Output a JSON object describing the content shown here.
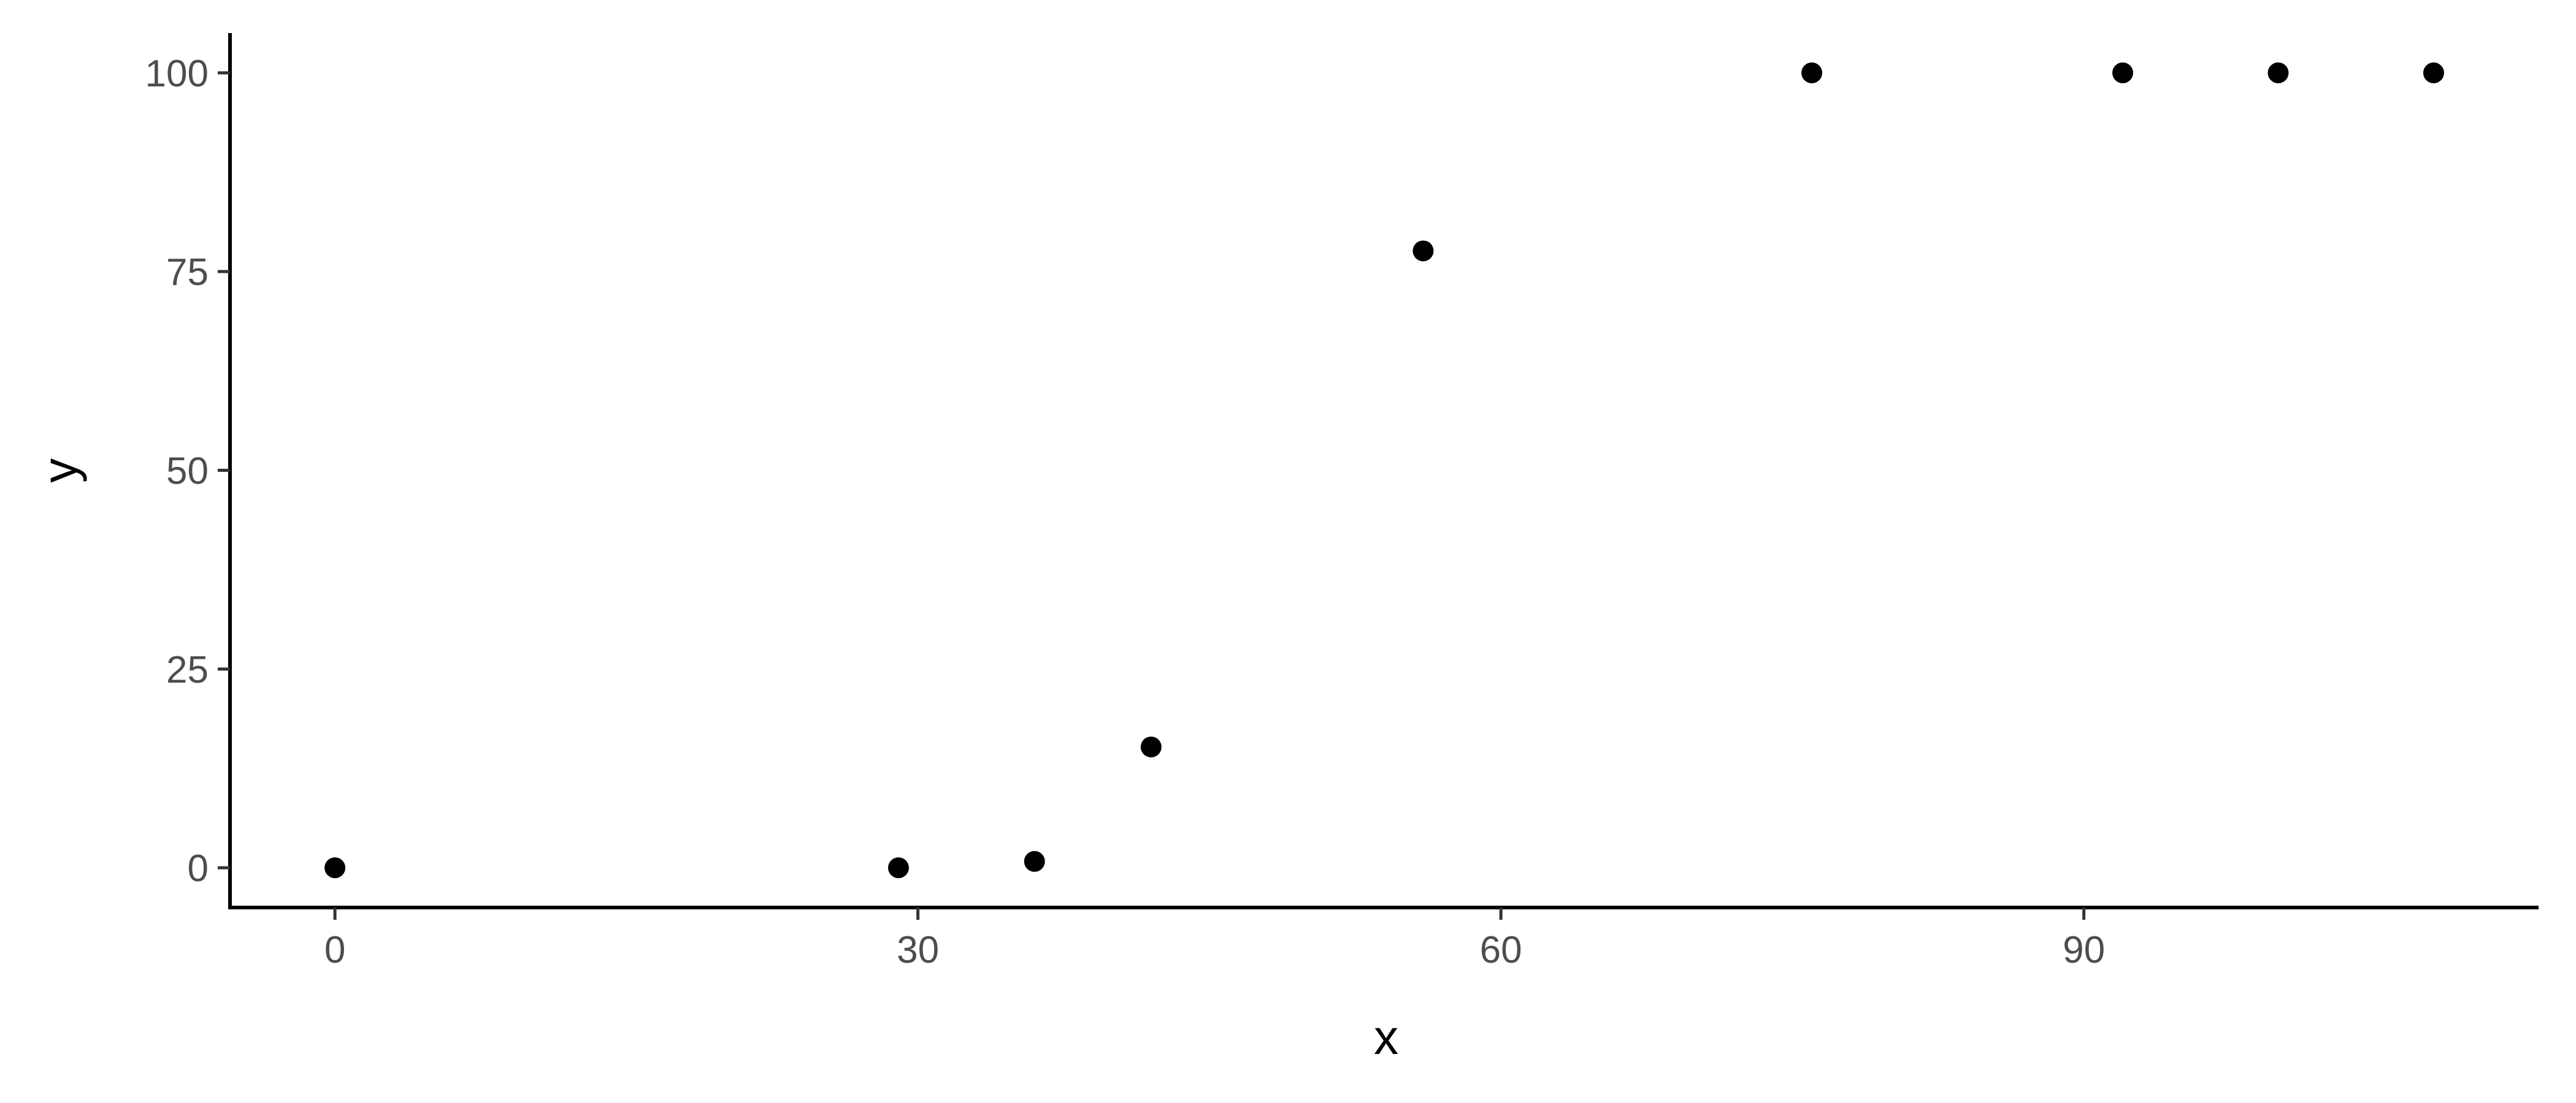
{
  "chart_data": {
    "type": "scatter",
    "title": "",
    "xlabel": "x",
    "ylabel": "y",
    "x": [
      0,
      29,
      36,
      42,
      56,
      76,
      92,
      100,
      108
    ],
    "y": [
      0,
      0,
      0.8,
      15.2,
      77.6,
      100,
      100,
      100,
      100
    ],
    "xlim": [
      -5.4,
      113.4
    ],
    "ylim": [
      -5,
      105
    ],
    "xticks": [
      0,
      30,
      60,
      90
    ],
    "yticks": [
      0,
      25,
      50,
      75,
      100
    ],
    "xtick_labels": [
      "0",
      "30",
      "60",
      "90"
    ],
    "ytick_labels": [
      "0",
      "25",
      "50",
      "75",
      "100"
    ],
    "grid": false,
    "point_color": "#000000",
    "axis_color": "#000000",
    "tick_label_color": "#4d4d4d"
  }
}
